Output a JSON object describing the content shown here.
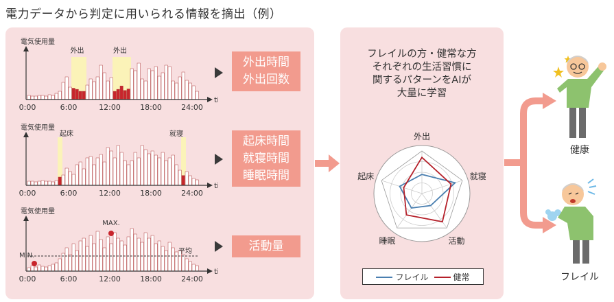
{
  "title": "電力データから判定に用いられる情報を摘出（例）",
  "colors": {
    "panel": "#f8dfe0",
    "accent": "#f29b8e",
    "frail": "#4a7fb0",
    "healthy": "#b5202a",
    "highlight": "#fbf3b8",
    "bar_fill": "#ffffff",
    "bar_red": "#c8252c"
  },
  "charts": [
    {
      "ylabel": "電気使用量",
      "xlabel": "time",
      "x_ticks": [
        "0:00",
        "6:00",
        "12:00",
        "18:00",
        "24:00"
      ],
      "annotations": [
        "外出",
        "外出"
      ],
      "results": [
        "外出時間",
        "外出回数"
      ]
    },
    {
      "ylabel": "電気使用量",
      "xlabel": "time",
      "x_ticks": [
        "0:00",
        "6:00",
        "12:00",
        "18:00",
        "24:00"
      ],
      "annotations": [
        "起床",
        "就寝"
      ],
      "results": [
        "起床時間",
        "就寝時間",
        "睡眠時間"
      ]
    },
    {
      "ylabel": "電気使用量",
      "xlabel": "time",
      "x_ticks": [
        "0:00",
        "6:00",
        "12:00",
        "18:00",
        "24:00"
      ],
      "annotations": [
        "MAX.",
        "MIN.",
        "平均"
      ],
      "results": [
        "活動量"
      ]
    }
  ],
  "ai_text": [
    "フレイルの方・健常な方",
    "それぞれの生活習慣に",
    "関するパターンをAIが",
    "大量に学習"
  ],
  "radar": {
    "axes": [
      "外出",
      "就寝",
      "活動",
      "睡眠",
      "起床"
    ],
    "series": [
      {
        "name": "フレイル",
        "color": "#4a7fb0",
        "values": [
          0.45,
          0.82,
          0.35,
          0.42,
          0.55
        ]
      },
      {
        "name": "健常",
        "color": "#b5202a",
        "values": [
          0.85,
          0.72,
          0.82,
          0.62,
          0.45
        ]
      }
    ]
  },
  "outcomes": [
    "健康",
    "フレイル"
  ]
}
